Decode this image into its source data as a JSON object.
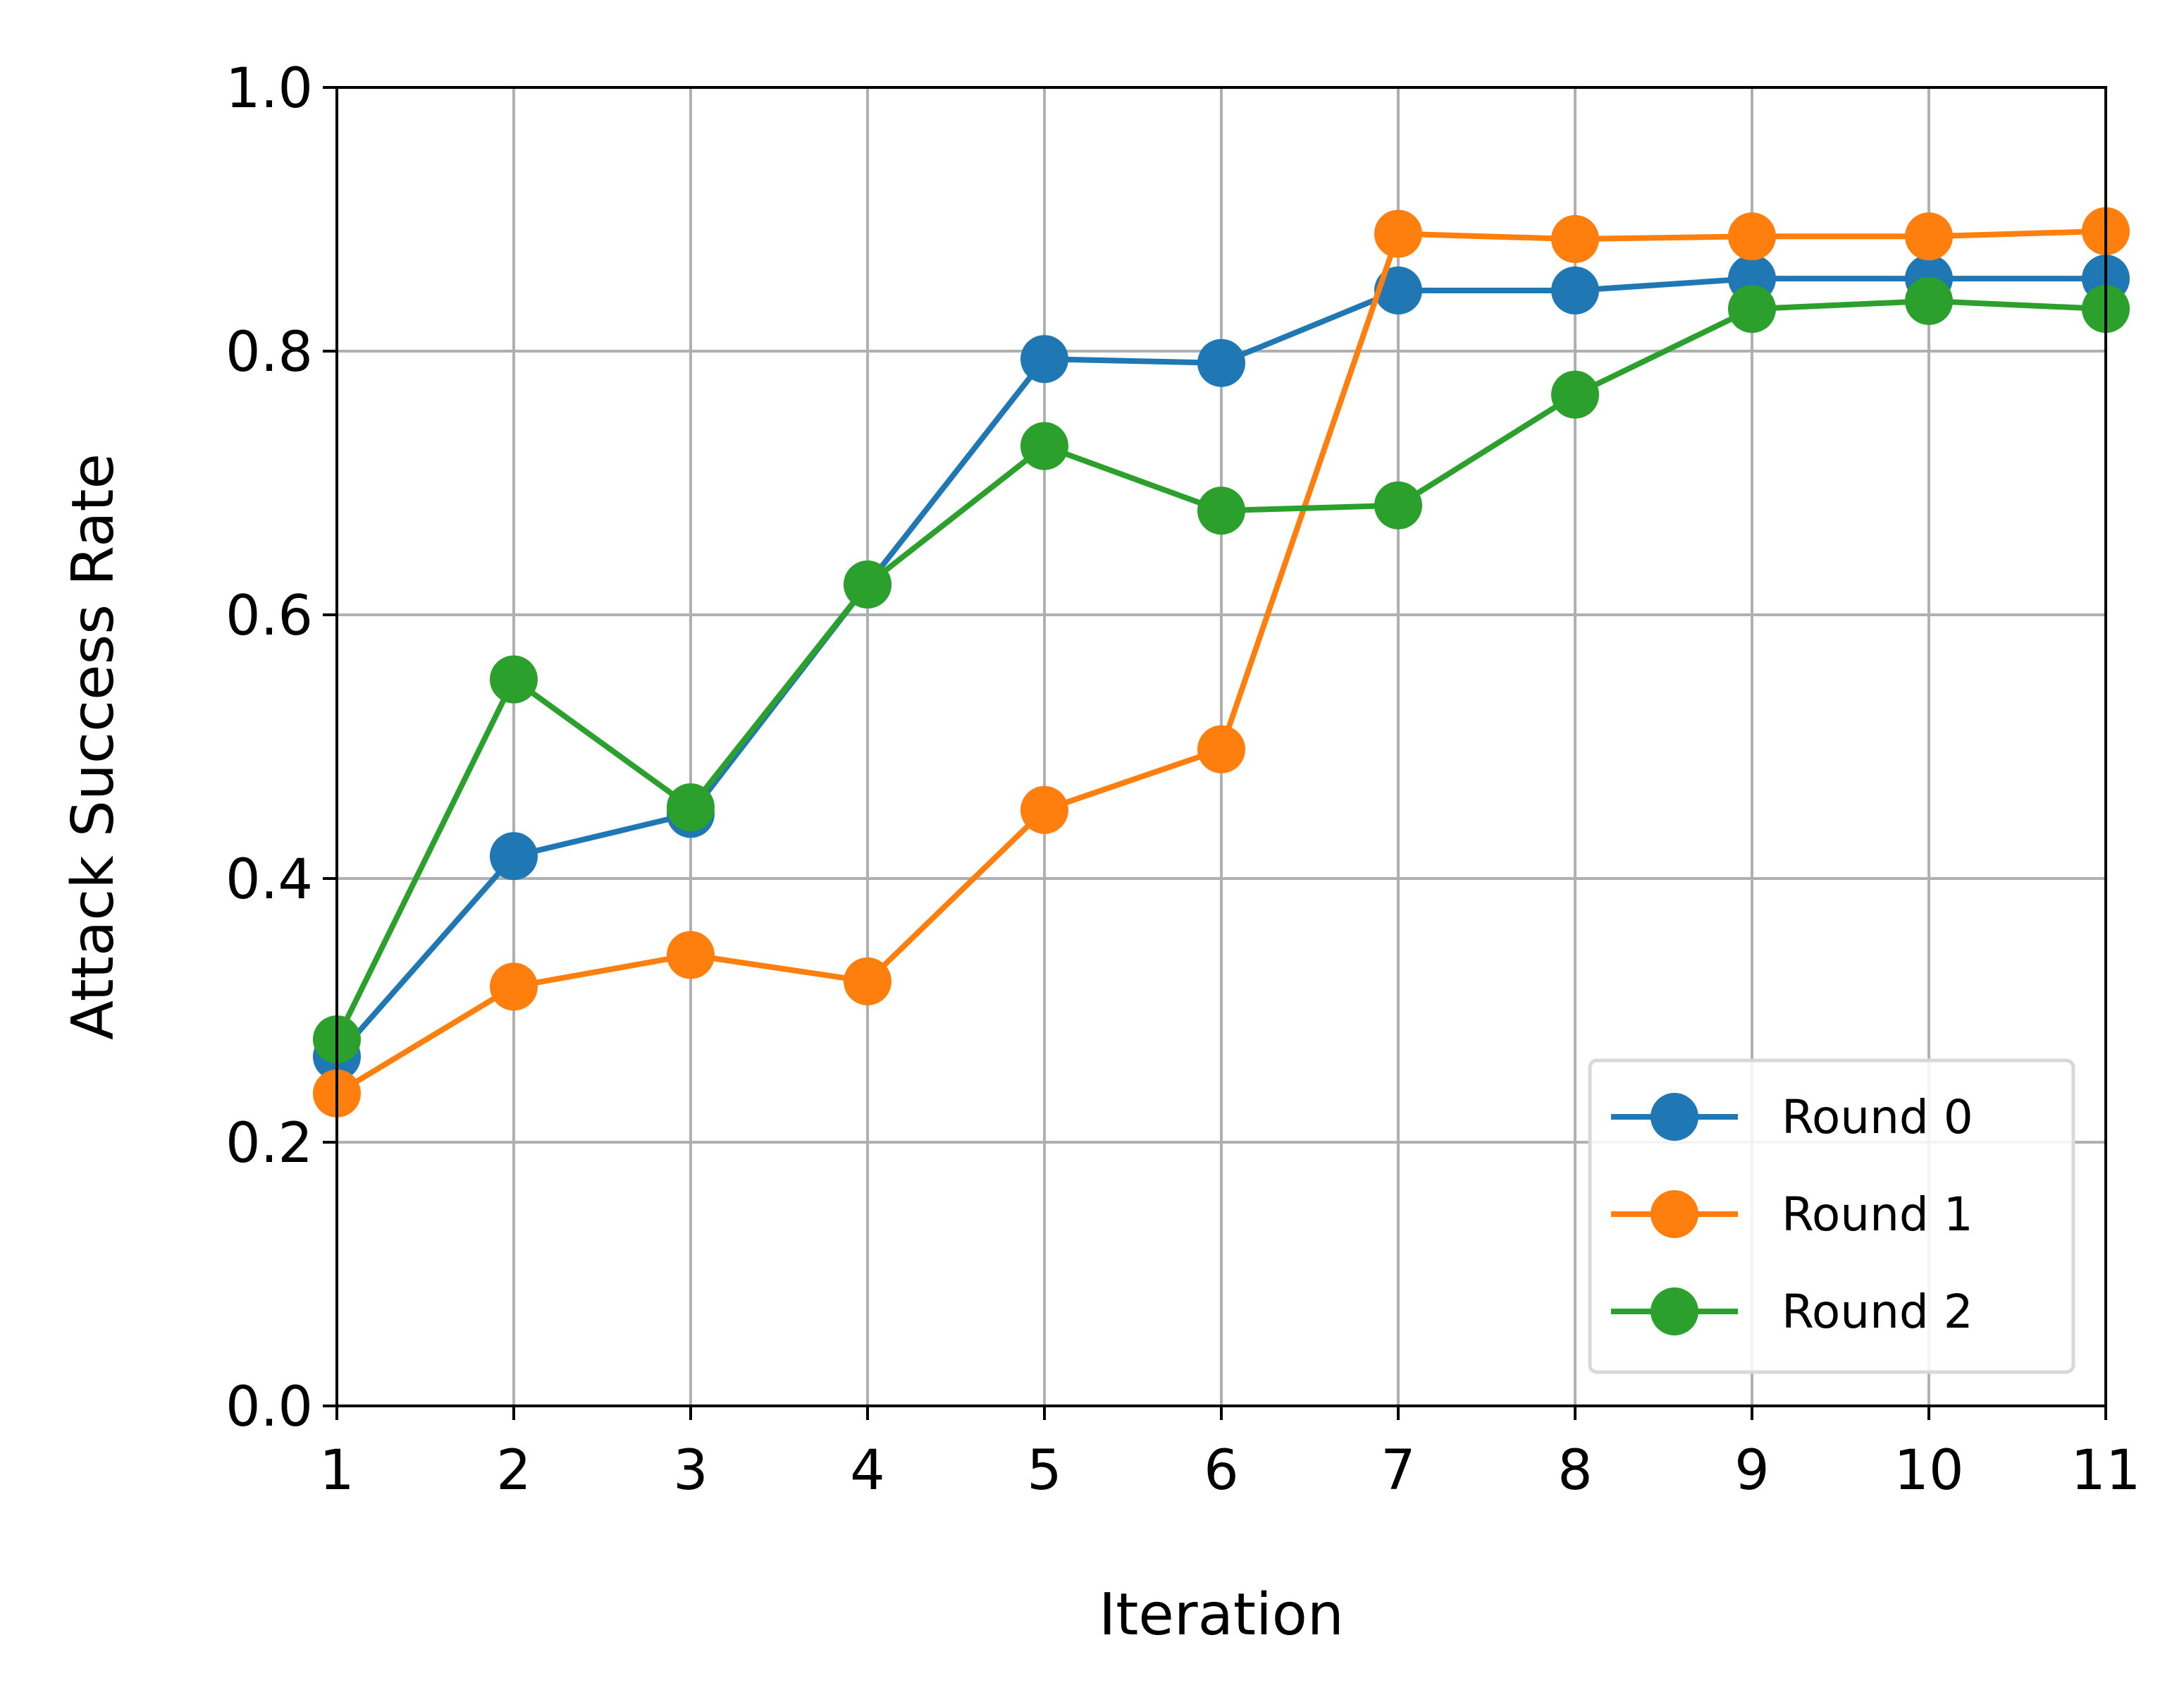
{
  "chart_data": {
    "type": "line",
    "title": "",
    "xlabel": "Iteration",
    "ylabel": "Attack Success Rate",
    "x": [
      1,
      2,
      3,
      4,
      5,
      6,
      7,
      8,
      9,
      10,
      11
    ],
    "xlim": [
      1,
      11
    ],
    "ylim": [
      0.0,
      1.0
    ],
    "xticks": [
      1,
      2,
      3,
      4,
      5,
      6,
      7,
      8,
      9,
      10,
      11
    ],
    "yticks": [
      0.0,
      0.2,
      0.4,
      0.6,
      0.8,
      1.0
    ],
    "ytick_labels": [
      "0.0",
      "0.2",
      "0.4",
      "0.6",
      "0.8",
      "1.0"
    ],
    "xtick_labels": [
      "1",
      "2",
      "3",
      "4",
      "5",
      "6",
      "7",
      "8",
      "9",
      "10",
      "11"
    ],
    "grid": true,
    "legend_position": "lower-right",
    "series": [
      {
        "name": "Round 0",
        "color": "#1f77b4",
        "values": [
          0.265,
          0.417,
          0.449,
          0.623,
          0.794,
          0.791,
          0.846,
          0.846,
          0.855,
          0.855,
          0.855
        ]
      },
      {
        "name": "Round 1",
        "color": "#ff7f0e",
        "values": [
          0.237,
          0.318,
          0.342,
          0.322,
          0.452,
          0.498,
          0.889,
          0.885,
          0.887,
          0.887,
          0.891
        ]
      },
      {
        "name": "Round 2",
        "color": "#2ca02c",
        "values": [
          0.278,
          0.551,
          0.454,
          0.623,
          0.728,
          0.679,
          0.683,
          0.767,
          0.832,
          0.838,
          0.832
        ]
      }
    ]
  }
}
